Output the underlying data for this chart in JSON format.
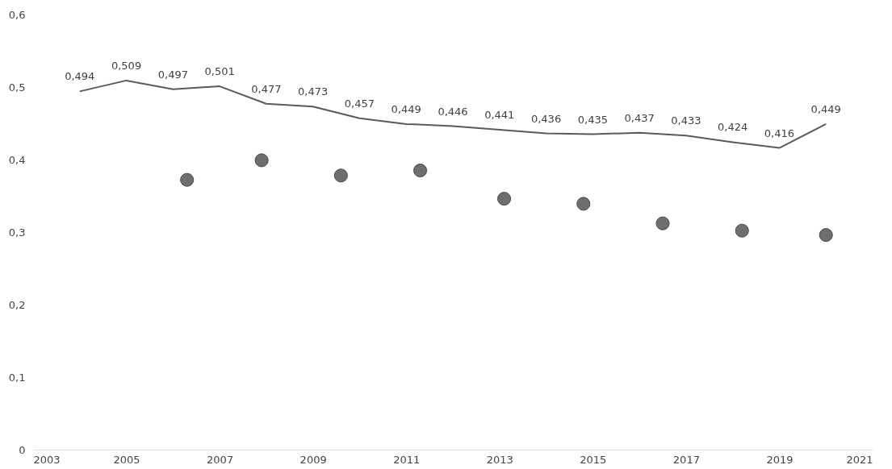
{
  "chart_data": {
    "type": "line",
    "xlim": [
      2003,
      2021
    ],
    "xticks": [
      2003,
      2005,
      2007,
      2009,
      2011,
      2013,
      2015,
      2017,
      2019,
      2021
    ],
    "ylim": [
      0,
      0.6
    ],
    "yticks": [
      0,
      {
        "value": 0.1,
        "label": "0,1"
      },
      {
        "value": 0.2,
        "label": "0,2"
      },
      {
        "value": 0.3,
        "label": "0,3"
      },
      {
        "value": 0.4,
        "label": "0,4"
      },
      {
        "value": 0.5,
        "label": "0,5"
      },
      {
        "value": 0.6,
        "label": "0,6"
      }
    ],
    "grid": false,
    "series": [
      {
        "color": "#5a5a5a",
        "line_style": "solid",
        "x": [
          2004,
          2005,
          2006,
          2007,
          2008,
          2009,
          2010,
          2011,
          2012,
          2013,
          2014,
          2015,
          2016,
          2017,
          2018,
          2019,
          2020
        ],
        "values": [
          0.494,
          0.509,
          0.497,
          0.501,
          0.477,
          0.473,
          0.457,
          0.449,
          0.446,
          0.441,
          0.436,
          0.435,
          0.437,
          0.433,
          0.424,
          0.416,
          0.449
        ],
        "value_labels": [
          "0,494",
          "0,509",
          "0,497",
          "0,501",
          "0,477",
          "0,473",
          "0,457",
          "0,449",
          "0,446",
          "0,441",
          "0,436",
          "0,435",
          "0,437",
          "0,433",
          "0,424",
          "0,416",
          "0,449"
        ]
      },
      {
        "type": "scatter",
        "color": "#6e6e6e",
        "marker": "circle",
        "x": [
          2006.3,
          2007.9,
          2009.6,
          2011.3,
          2013.1,
          2014.8,
          2016.5,
          2018.2,
          2020.0
        ],
        "values": [
          0.372,
          0.399,
          0.378,
          0.385,
          0.346,
          0.339,
          0.312,
          0.302,
          0.296
        ]
      }
    ]
  }
}
